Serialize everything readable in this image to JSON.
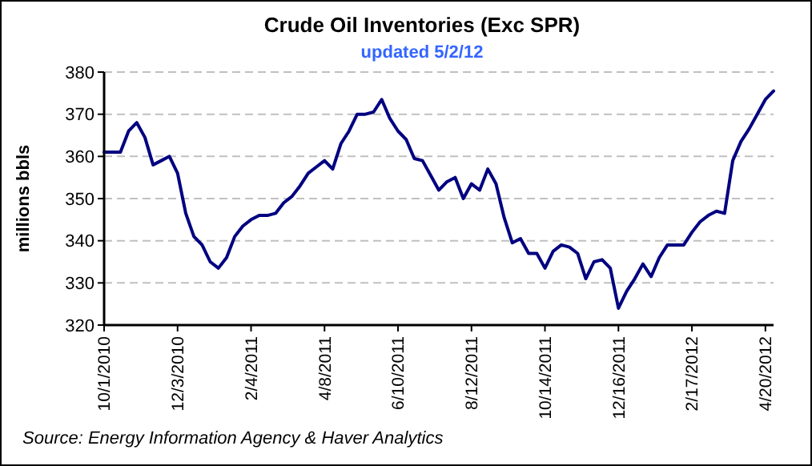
{
  "chart_data": {
    "type": "line",
    "title": "Crude Oil Inventories (Exc SPR)",
    "subtitle": "updated 5/2/12",
    "ylabel": "millions bbls",
    "annotations": [
      "Source: Energy Information Agency & Haver Analytics"
    ],
    "x": [
      "2010-10-01",
      "2010-10-08",
      "2010-10-15",
      "2010-10-22",
      "2010-10-29",
      "2010-11-05",
      "2010-11-12",
      "2010-11-19",
      "2010-11-26",
      "2010-12-03",
      "2010-12-10",
      "2010-12-17",
      "2010-12-24",
      "2010-12-31",
      "2011-01-07",
      "2011-01-14",
      "2011-01-21",
      "2011-01-28",
      "2011-02-04",
      "2011-02-11",
      "2011-02-18",
      "2011-02-25",
      "2011-03-04",
      "2011-03-11",
      "2011-03-18",
      "2011-03-25",
      "2011-04-01",
      "2011-04-08",
      "2011-04-15",
      "2011-04-22",
      "2011-04-29",
      "2011-05-06",
      "2011-05-13",
      "2011-05-20",
      "2011-05-27",
      "2011-06-03",
      "2011-06-10",
      "2011-06-17",
      "2011-06-24",
      "2011-07-01",
      "2011-07-08",
      "2011-07-15",
      "2011-07-22",
      "2011-07-29",
      "2011-08-05",
      "2011-08-12",
      "2011-08-19",
      "2011-08-26",
      "2011-09-02",
      "2011-09-09",
      "2011-09-16",
      "2011-09-23",
      "2011-09-30",
      "2011-10-07",
      "2011-10-14",
      "2011-10-21",
      "2011-10-28",
      "2011-11-04",
      "2011-11-11",
      "2011-11-18",
      "2011-11-25",
      "2011-12-02",
      "2011-12-09",
      "2011-12-16",
      "2011-12-23",
      "2011-12-30",
      "2012-01-06",
      "2012-01-13",
      "2012-01-20",
      "2012-01-27",
      "2012-02-03",
      "2012-02-10",
      "2012-02-17",
      "2012-02-24",
      "2012-03-02",
      "2012-03-09",
      "2012-03-16",
      "2012-03-23",
      "2012-03-30",
      "2012-04-06",
      "2012-04-13",
      "2012-04-20",
      "2012-04-27"
    ],
    "series": [
      {
        "color": "#000080",
        "values": [
          361,
          361,
          361,
          366,
          368,
          364.5,
          358,
          359,
          360,
          356,
          346.5,
          341,
          339,
          335,
          333.5,
          336,
          341,
          343.5,
          345,
          346,
          346,
          346.5,
          349,
          350.5,
          353,
          356,
          357.5,
          359,
          357,
          363,
          366,
          370,
          370,
          370.5,
          373.5,
          369,
          366,
          364,
          359.5,
          359,
          355.5,
          352,
          354,
          355,
          350,
          353.5,
          352,
          357,
          353.5,
          345.5,
          339.5,
          340.5,
          337,
          337,
          333.5,
          337.5,
          339,
          338.5,
          337,
          331,
          335,
          335.5,
          333.5,
          324,
          328,
          331,
          334.5,
          331.5,
          336,
          339,
          339,
          339,
          342,
          344.5,
          346,
          347,
          346.5,
          359,
          363.5,
          366.5,
          370,
          373.5,
          375.5
        ]
      }
    ],
    "xlim": [
      "2010-10-01",
      "2012-04-27"
    ],
    "xticks": [
      {
        "value": "2010-10-01",
        "label": "10/1/2010"
      },
      {
        "value": "2010-12-03",
        "label": "12/3/2010"
      },
      {
        "value": "2011-02-04",
        "label": "2/4/2011"
      },
      {
        "value": "2011-04-08",
        "label": "4/8/2011"
      },
      {
        "value": "2011-06-10",
        "label": "6/10/2011"
      },
      {
        "value": "2011-08-12",
        "label": "8/12/2011"
      },
      {
        "value": "2011-10-14",
        "label": "10/14/2011"
      },
      {
        "value": "2011-12-16",
        "label": "12/16/2011"
      },
      {
        "value": "2012-02-17",
        "label": "2/17/2012"
      },
      {
        "value": "2012-04-20",
        "label": "4/20/2012"
      }
    ],
    "ylim": [
      320,
      380
    ],
    "yticks": [
      320,
      330,
      340,
      350,
      360,
      370,
      380
    ],
    "grid": "y",
    "line_style": "solid",
    "marker": "none"
  }
}
